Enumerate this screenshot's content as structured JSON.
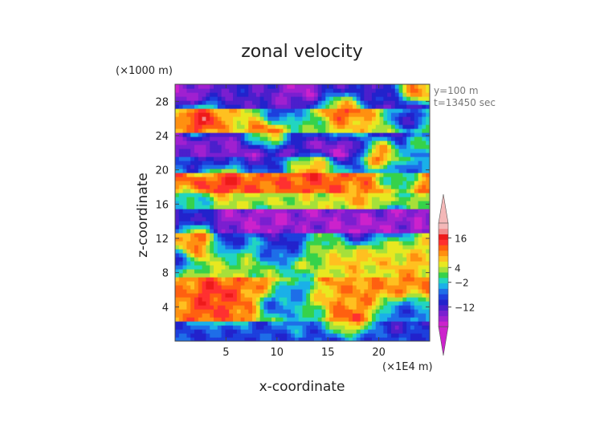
{
  "chart_data": {
    "type": "heatmap",
    "title": "zonal velocity",
    "xlabel": "x-coordinate",
    "ylabel": "z-coordinate",
    "x_unit_label": "(×1E4 m)",
    "y_unit_label": "(×1000 m)",
    "annotations": [
      "y=100 m",
      "t=13450 sec"
    ],
    "xlim": [
      0,
      25
    ],
    "ylim": [
      0,
      30
    ],
    "x_ticks": [
      5,
      10,
      15,
      20
    ],
    "y_ticks": [
      4,
      8,
      12,
      16,
      20,
      24,
      28
    ],
    "colorbar": {
      "tick_labels": [
        "16",
        "4",
        "−2",
        "−12"
      ],
      "tick_values": [
        16,
        4,
        -2,
        -12
      ],
      "range": [
        -20,
        22
      ],
      "extend": "both",
      "colors": [
        "#cc22cc",
        "#a020d0",
        "#7a1fd0",
        "#4b1fcc",
        "#2222cc",
        "#1d3fdd",
        "#1e6ee8",
        "#1ab0e8",
        "#22d5c0",
        "#36d24a",
        "#a6e03a",
        "#e8e820",
        "#ffc020",
        "#ff9010",
        "#ff6010",
        "#ff3030",
        "#ee1a1a",
        "#f28a8a",
        "#f4b8b8"
      ]
    },
    "bands": [
      {
        "z": [
          0,
          2.5
        ],
        "value": -8
      },
      {
        "z": [
          2.5,
          7.5
        ],
        "value": 10
      },
      {
        "z": [
          7.5,
          12.5
        ],
        "value": 3
      },
      {
        "z": [
          12.5,
          15.5
        ],
        "value": -16
      },
      {
        "z": [
          15.5,
          17.5
        ],
        "value": 4
      },
      {
        "z": [
          17.5,
          19.5
        ],
        "value": 12
      },
      {
        "z": [
          19.5,
          21.5
        ],
        "value": -6
      },
      {
        "z": [
          21.5,
          24.5
        ],
        "value": -15
      },
      {
        "z": [
          24.5,
          27
        ],
        "value": 6
      },
      {
        "z": [
          27,
          30
        ],
        "value": -12
      }
    ],
    "features": [
      {
        "x": 0,
        "z": 10,
        "value": -18
      },
      {
        "x": 1.2,
        "z": 11,
        "value": 16
      },
      {
        "x": 3.5,
        "z": 4,
        "value": 14
      },
      {
        "x": 4,
        "z": 5.5,
        "value": 16
      },
      {
        "x": 6,
        "z": 4,
        "value": 12
      },
      {
        "x": 10,
        "z": 4,
        "value": -12
      },
      {
        "x": 11.5,
        "z": 2.5,
        "value": -2
      },
      {
        "x": 12,
        "z": 6,
        "value": -10
      },
      {
        "x": 13,
        "z": 3,
        "value": -6
      },
      {
        "x": 15,
        "z": 5,
        "value": 8
      },
      {
        "x": 17,
        "z": 2.5,
        "value": 14
      },
      {
        "x": 19,
        "z": 3.5,
        "value": 10
      },
      {
        "x": 21,
        "z": 3,
        "value": -14
      },
      {
        "x": 23.5,
        "z": 3.5,
        "value": -12
      },
      {
        "x": 17,
        "z": 9,
        "value": 8
      },
      {
        "x": 19.5,
        "z": 9.5,
        "value": 8
      },
      {
        "x": 23,
        "z": 8,
        "value": 10
      },
      {
        "x": 24.5,
        "z": 10,
        "value": 8
      },
      {
        "x": 10,
        "z": 10.5,
        "value": -10
      },
      {
        "x": 11,
        "z": 12,
        "value": -14
      },
      {
        "x": 2.5,
        "z": 12,
        "value": 14
      },
      {
        "x": 5,
        "z": 12,
        "value": -16
      },
      {
        "x": 9,
        "z": 13.5,
        "value": -18
      },
      {
        "x": 18,
        "z": 13,
        "value": -18
      },
      {
        "x": 22,
        "z": 14,
        "value": -16
      },
      {
        "x": 1.5,
        "z": 16,
        "value": -4
      },
      {
        "x": 18,
        "z": 17.5,
        "value": 10
      },
      {
        "x": 4.5,
        "z": 19,
        "value": 16
      },
      {
        "x": 13.5,
        "z": 20,
        "value": 14
      },
      {
        "x": 22,
        "z": 19,
        "value": -6
      },
      {
        "x": 3.5,
        "z": 21,
        "value": -14
      },
      {
        "x": 8,
        "z": 22,
        "value": -16
      },
      {
        "x": 17,
        "z": 22.5,
        "value": -18
      },
      {
        "x": 20,
        "z": 22,
        "value": 18
      },
      {
        "x": 24.5,
        "z": 23,
        "value": 6
      },
      {
        "x": 9,
        "z": 24,
        "value": 14
      },
      {
        "x": 17,
        "z": 25,
        "value": 8
      },
      {
        "x": 2.5,
        "z": 26,
        "value": 18
      },
      {
        "x": 13,
        "z": 25.5,
        "value": -2
      },
      {
        "x": 16.5,
        "z": 27,
        "value": 16
      },
      {
        "x": 23,
        "z": 26,
        "value": -16
      },
      {
        "x": 1,
        "z": 29,
        "value": -18
      },
      {
        "x": 12,
        "z": 29.5,
        "value": -18
      },
      {
        "x": 24,
        "z": 29.5,
        "value": 18
      },
      {
        "x": 10.5,
        "z": 27,
        "value": -14
      }
    ]
  }
}
